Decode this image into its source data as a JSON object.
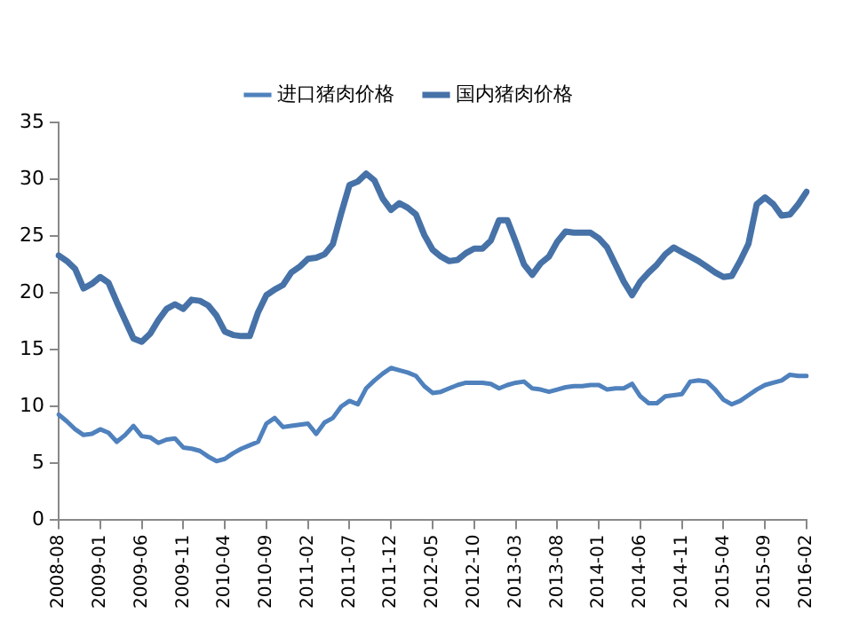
{
  "chart_data": {
    "type": "line",
    "legend": "top",
    "grid": false,
    "marker": "none",
    "line_style": "solid",
    "categories": [
      "2008-08",
      null,
      null,
      null,
      null,
      "2009-01",
      null,
      null,
      null,
      null,
      "2009-06",
      null,
      null,
      null,
      null,
      "2009-11",
      null,
      null,
      null,
      null,
      "2010-04",
      null,
      null,
      null,
      null,
      "2010-09",
      null,
      null,
      null,
      null,
      "2011-02",
      null,
      null,
      null,
      null,
      "2011-07",
      null,
      null,
      null,
      null,
      "2011-12",
      null,
      null,
      null,
      null,
      "2012-05",
      null,
      null,
      null,
      null,
      "2012-10",
      null,
      null,
      null,
      null,
      "2013-03",
      null,
      null,
      null,
      null,
      "2013-08",
      null,
      null,
      null,
      null,
      "2014-01",
      null,
      null,
      null,
      null,
      "2014-06",
      null,
      null,
      null,
      null,
      "2014-11",
      null,
      null,
      null,
      null,
      "2015-04",
      null,
      null,
      null,
      null,
      "2015-09",
      null,
      null,
      null,
      null,
      "2016-02"
    ],
    "ylim": [
      0,
      35
    ],
    "yticks": [
      0,
      5,
      10,
      15,
      20,
      25,
      30,
      35
    ],
    "series": [
      {
        "name": "进口猪肉价格",
        "color": "#4f81bd",
        "values": [
          9.3,
          8.7,
          8.0,
          7.5,
          7.6,
          8.0,
          7.7,
          6.9,
          7.5,
          8.3,
          7.4,
          7.3,
          6.8,
          7.1,
          7.2,
          6.4,
          6.3,
          6.1,
          5.6,
          5.2,
          5.4,
          5.9,
          6.3,
          6.6,
          6.9,
          8.5,
          9.0,
          8.2,
          8.3,
          8.4,
          8.5,
          7.6,
          8.6,
          9.0,
          10.0,
          10.5,
          10.2,
          11.6,
          12.3,
          12.9,
          13.4,
          13.2,
          13.0,
          12.7,
          11.8,
          11.2,
          11.3,
          11.6,
          11.9,
          12.1,
          12.1,
          12.1,
          12.0,
          11.6,
          11.9,
          12.1,
          12.2,
          11.6,
          11.5,
          11.3,
          11.5,
          11.7,
          11.8,
          11.8,
          11.9,
          11.9,
          11.5,
          11.6,
          11.6,
          12.0,
          10.9,
          10.3,
          10.3,
          10.9,
          11.0,
          11.1,
          12.2,
          12.3,
          12.2,
          11.5,
          10.6,
          10.2,
          10.5,
          11.0,
          11.5,
          11.9,
          12.1,
          12.3,
          12.8,
          12.7,
          12.7
        ]
      },
      {
        "name": "国内猪肉价格",
        "color": "#4672a8",
        "values": [
          23.3,
          22.8,
          22.1,
          20.4,
          20.8,
          21.4,
          20.9,
          19.2,
          17.6,
          16.0,
          15.7,
          16.4,
          17.6,
          18.6,
          19.0,
          18.6,
          19.4,
          19.3,
          18.9,
          18.0,
          16.6,
          16.3,
          16.2,
          16.2,
          18.3,
          19.8,
          20.3,
          20.7,
          21.8,
          22.3,
          23.0,
          23.1,
          23.4,
          24.3,
          27.0,
          29.5,
          29.8,
          30.5,
          29.9,
          28.3,
          27.3,
          27.9,
          27.5,
          26.9,
          25.1,
          23.8,
          23.2,
          22.8,
          22.9,
          23.5,
          23.9,
          23.9,
          24.6,
          26.4,
          26.4,
          24.5,
          22.5,
          21.6,
          22.6,
          23.2,
          24.5,
          25.4,
          25.3,
          25.3,
          25.3,
          24.8,
          24.0,
          22.5,
          21.0,
          19.8,
          21.0,
          21.8,
          22.5,
          23.4,
          24.0,
          23.6,
          23.2,
          22.8,
          22.3,
          21.8,
          21.4,
          21.5,
          22.8,
          24.3,
          27.8,
          28.4,
          27.8,
          26.8,
          26.9,
          27.8,
          28.9
        ]
      }
    ]
  }
}
